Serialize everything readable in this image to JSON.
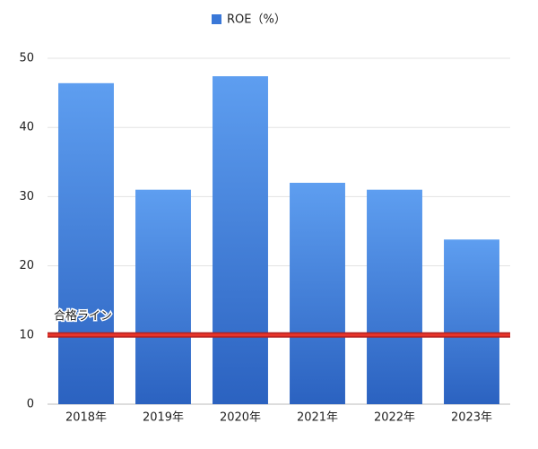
{
  "chart_data": {
    "type": "bar",
    "categories": [
      "2018年",
      "2019年",
      "2020年",
      "2021年",
      "2022年",
      "2023年"
    ],
    "series": [
      {
        "name": "ROE（%）",
        "color": "#3a78d8",
        "values": [
          46.4,
          31.0,
          47.4,
          32.0,
          31.0,
          23.8
        ]
      }
    ],
    "ylim": [
      0,
      50
    ],
    "yticks": [
      0,
      10,
      20,
      30,
      40,
      50
    ],
    "grid": true,
    "legend": "top",
    "reference_line": {
      "value": 10,
      "label": "合格ライン",
      "color": "#e8352b"
    }
  }
}
